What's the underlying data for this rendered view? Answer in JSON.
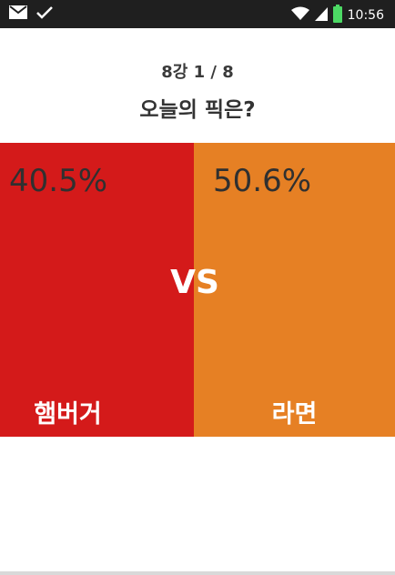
{
  "status_bar": {
    "time": "10:56",
    "icons": [
      "mail-icon",
      "check-icon",
      "wifi-icon",
      "signal-icon",
      "battery-icon"
    ]
  },
  "header": {
    "round_label": "8강 1 / 8",
    "question": "오늘의 픽은?"
  },
  "match": {
    "left": {
      "name": "햄버거",
      "percent": "40.5%",
      "color": "#d41a1a"
    },
    "vs_label": "VS",
    "right": {
      "name": "라면",
      "percent": "50.6%",
      "color": "#e68024"
    }
  }
}
